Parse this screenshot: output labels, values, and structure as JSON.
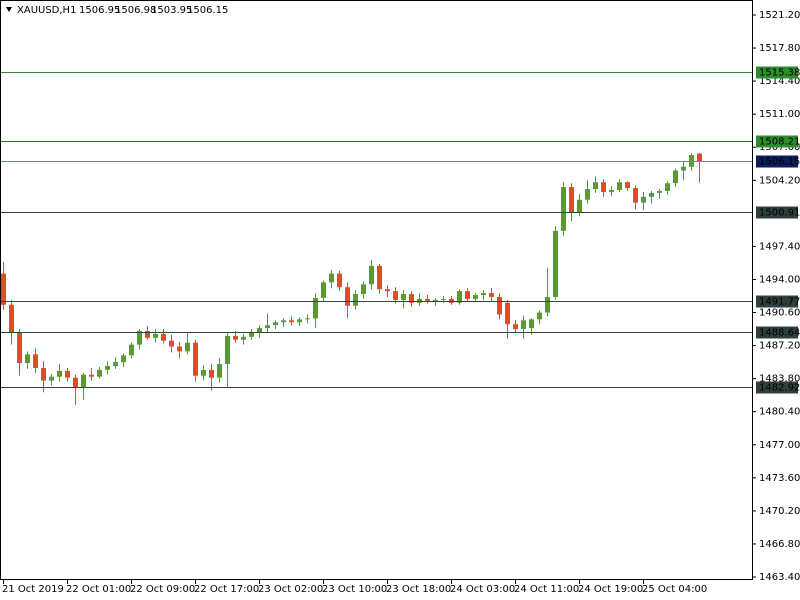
{
  "chart_data": {
    "type": "candlestick",
    "symbol": "XAUUSD,H1",
    "up_color": "#5a9a30",
    "down_color": "#e8472b",
    "categories": [
      "21 Oct 2019",
      null,
      null,
      null,
      null,
      null,
      null,
      null,
      "22 Oct 01:00",
      null,
      null,
      null,
      null,
      null,
      null,
      null,
      "22 Oct 09:00",
      null,
      null,
      null,
      null,
      null,
      null,
      null,
      "22 Oct 17:00",
      null,
      null,
      null,
      null,
      null,
      null,
      null,
      "23 Oct 02:00",
      null,
      null,
      null,
      null,
      null,
      null,
      null,
      "23 Oct 10:00",
      null,
      null,
      null,
      null,
      null,
      null,
      null,
      "23 Oct 18:00",
      null,
      null,
      null,
      null,
      null,
      null,
      null,
      "24 Oct 03:00",
      null,
      null,
      null,
      null,
      null,
      null,
      null,
      "24 Oct 11:00",
      null,
      null,
      null,
      null,
      null,
      null,
      null,
      "24 Oct 19:00",
      null,
      null,
      null,
      null,
      null,
      null,
      null,
      "25 Oct 04:00",
      null,
      null,
      null,
      null,
      null,
      null,
      null
    ],
    "open": [
      1494.6,
      1491.4,
      1488.5,
      1485.4,
      1486.3,
      1484.9,
      1483.6,
      1484.0,
      1484.6,
      1483.9,
      1482.9,
      1484.2,
      1484.0,
      1484.7,
      1485.1,
      1485.5,
      1486.2,
      1487.3,
      1488.7,
      1488.0,
      1488.4,
      1487.7,
      1487.1,
      1486.6,
      1487.5,
      1484.1,
      1484.7,
      1483.9,
      1485.3,
      1488.2,
      1487.8,
      1488.1,
      1488.5,
      1489.0,
      1489.3,
      1489.6,
      1489.8,
      1489.6,
      1489.9,
      1490.0,
      1492.1,
      1493.7,
      1494.6,
      1493.2,
      1491.3,
      1492.5,
      1493.5,
      1495.4,
      1493.0,
      1492.8,
      1491.9,
      1492.5,
      1491.6,
      1492.0,
      1491.8,
      1491.9,
      1492.0,
      1491.6,
      1492.8,
      1492.0,
      1492.4,
      1492.6,
      1492.2,
      1491.6,
      1489.4,
      1488.9,
      1489.0,
      1489.9,
      1490.6,
      1492.2,
      1499.0,
      1503.5,
      1500.9,
      1502.2,
      1503.3,
      1504.0,
      1503.0,
      1503.2,
      1504.0,
      1503.4,
      1501.9,
      1502.5,
      1502.9,
      1503.1,
      1503.9,
      1505.2,
      1505.6,
      1506.95
    ],
    "high": [
      1495.8,
      1491.9,
      1488.9,
      1486.6,
      1486.9,
      1485.6,
      1484.3,
      1485.3,
      1484.9,
      1484.2,
      1484.4,
      1484.9,
      1485.0,
      1485.6,
      1486.0,
      1486.4,
      1487.5,
      1488.9,
      1489.2,
      1488.9,
      1488.9,
      1488.3,
      1487.6,
      1488.6,
      1487.8,
      1485.2,
      1485.3,
      1485.9,
      1488.6,
      1488.7,
      1488.4,
      1488.9,
      1489.3,
      1490.5,
      1489.8,
      1490.0,
      1490.2,
      1490.1,
      1490.4,
      1492.6,
      1493.9,
      1495.0,
      1494.9,
      1493.7,
      1492.9,
      1493.8,
      1496.0,
      1495.6,
      1493.4,
      1493.2,
      1492.9,
      1492.8,
      1492.6,
      1492.4,
      1492.1,
      1492.3,
      1492.3,
      1493.0,
      1493.1,
      1492.6,
      1492.9,
      1493.1,
      1492.6,
      1491.9,
      1489.8,
      1490.3,
      1490.0,
      1490.8,
      1495.2,
      1499.5,
      1504.0,
      1503.9,
      1502.8,
      1504.2,
      1504.6,
      1504.3,
      1503.6,
      1504.3,
      1504.1,
      1503.7,
      1503.0,
      1503.1,
      1503.3,
      1504.1,
      1505.4,
      1506.1,
      1507.0,
      1506.98
    ],
    "low": [
      1490.9,
      1487.3,
      1484.1,
      1484.8,
      1484.4,
      1482.4,
      1483.1,
      1483.5,
      1483.5,
      1481.1,
      1481.6,
      1483.6,
      1483.8,
      1484.2,
      1484.8,
      1485.0,
      1485.9,
      1486.8,
      1487.8,
      1487.5,
      1487.4,
      1486.5,
      1485.9,
      1486.3,
      1483.5,
      1483.6,
      1482.6,
      1483.4,
      1482.9,
      1487.5,
      1487.3,
      1487.8,
      1488.0,
      1488.6,
      1488.9,
      1489.1,
      1489.3,
      1489.2,
      1489.5,
      1489.0,
      1491.8,
      1493.1,
      1492.8,
      1490.0,
      1490.9,
      1492.0,
      1493.0,
      1492.5,
      1492.2,
      1491.5,
      1491.0,
      1491.2,
      1491.3,
      1491.5,
      1491.3,
      1491.6,
      1491.4,
      1491.4,
      1491.7,
      1491.7,
      1491.9,
      1491.8,
      1489.9,
      1487.9,
      1488.6,
      1487.9,
      1488.3,
      1489.4,
      1490.2,
      1491.9,
      1498.5,
      1500.0,
      1500.5,
      1501.8,
      1502.9,
      1502.5,
      1502.6,
      1503.0,
      1503.1,
      1501.2,
      1501.1,
      1501.8,
      1502.3,
      1502.7,
      1503.5,
      1504.2,
      1505.2,
      1503.95
    ],
    "close": [
      1491.4,
      1488.5,
      1485.4,
      1486.3,
      1484.9,
      1483.6,
      1484.0,
      1484.6,
      1483.9,
      1482.9,
      1484.2,
      1484.0,
      1484.7,
      1485.1,
      1485.5,
      1486.2,
      1487.3,
      1488.7,
      1488.0,
      1488.4,
      1487.7,
      1487.1,
      1486.6,
      1487.5,
      1484.1,
      1484.7,
      1483.9,
      1485.3,
      1488.2,
      1487.8,
      1488.1,
      1488.5,
      1489.0,
      1489.3,
      1489.6,
      1489.8,
      1489.6,
      1489.9,
      1490.0,
      1492.1,
      1493.7,
      1494.6,
      1493.2,
      1491.3,
      1492.5,
      1493.5,
      1495.4,
      1493.0,
      1492.8,
      1491.9,
      1492.5,
      1491.6,
      1492.0,
      1491.8,
      1491.9,
      1492.0,
      1491.6,
      1492.8,
      1492.0,
      1492.4,
      1492.6,
      1492.2,
      1490.4,
      1489.4,
      1488.9,
      1489.8,
      1489.9,
      1490.6,
      1492.2,
      1499.0,
      1503.5,
      1500.9,
      1502.2,
      1503.3,
      1504.0,
      1503.0,
      1503.2,
      1504.0,
      1503.4,
      1501.9,
      1502.5,
      1502.9,
      1503.1,
      1503.9,
      1505.2,
      1505.6,
      1506.8,
      1506.15
    ],
    "ylim": [
      1463.4,
      1522.7
    ],
    "yticks": [
      {
        "value": 1463.4,
        "label": "1463.40"
      },
      {
        "value": 1466.8,
        "label": "1466.80"
      },
      {
        "value": 1470.2,
        "label": "1470.20"
      },
      {
        "value": 1473.6,
        "label": "1473.60"
      },
      {
        "value": 1477,
        "label": "1477.00"
      },
      {
        "value": 1480.4,
        "label": "1480.40"
      },
      {
        "value": 1483.8,
        "label": "1483.80"
      },
      {
        "value": 1487.2,
        "label": "1487.20"
      },
      {
        "value": 1490.6,
        "label": "1490.60"
      },
      {
        "value": 1494,
        "label": "1494.00"
      },
      {
        "value": 1497.4,
        "label": "1497.40"
      },
      {
        "value": 1504.2,
        "label": "1504.20"
      },
      {
        "value": 1507.6,
        "label": "1507.60"
      },
      {
        "value": 1511,
        "label": "1511.00"
      },
      {
        "value": 1514.4,
        "label": "1514.40"
      },
      {
        "value": 1517.8,
        "label": "1517.80"
      },
      {
        "value": 1521.2,
        "label": "1521.20"
      }
    ],
    "levels": [
      {
        "value": 1515.38,
        "color": "#2e8b2e",
        "label_color": "#2e8b2e"
      },
      {
        "value": 1508.21,
        "color": "#2e6b2e",
        "label_color": "#2e8b2e"
      },
      {
        "value": 1506.15,
        "color": "#6a8a8a",
        "label_color": "#0b1d5a"
      },
      {
        "value": 1500.91,
        "color": "#2e4a3a",
        "label_color": "#2f3f3f"
      },
      {
        "value": 1491.77,
        "color": "#2e4a3a",
        "label_color": "#2f3f3f"
      },
      {
        "value": 1488.64,
        "color": "#2e4a3a",
        "label_color": "#2f3f3f"
      },
      {
        "value": 1482.92,
        "color": "#2e4a3a",
        "label_color": "#2f3f3f"
      }
    ]
  }
}
